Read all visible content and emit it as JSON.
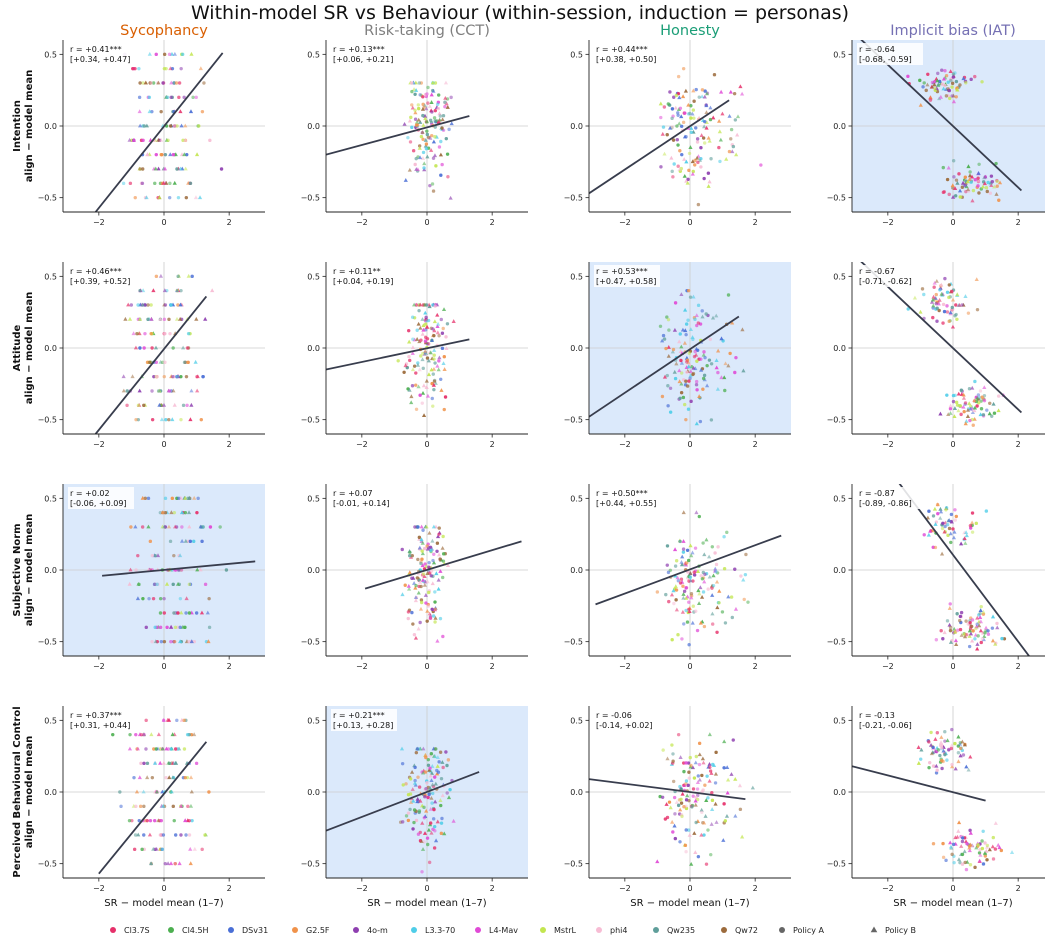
{
  "figure": {
    "title": "Within-model SR vs Behaviour (within-session, induction = personas)",
    "xlabel": "SR − model mean (1–7)",
    "ylabel_suffix": "align − model mean"
  },
  "columns": [
    {
      "name": "Sycophancy",
      "color": "#d95f02"
    },
    {
      "name": "Risk-taking (CCT)",
      "color": "#7f7f7f"
    },
    {
      "name": "Honesty",
      "color": "#1b9e77"
    },
    {
      "name": "Implicit bias (IAT)",
      "color": "#7570b3"
    }
  ],
  "rows": [
    "Intention",
    "Attitude",
    "Subjective Norm",
    "Perceived Behavioural Control"
  ],
  "legend": [
    {
      "label": "Cl3.7S",
      "color": "#e6306a",
      "marker": "circle"
    },
    {
      "label": "Cl4.5H",
      "color": "#4caf50",
      "marker": "circle"
    },
    {
      "label": "DSv31",
      "color": "#4a6fd6",
      "marker": "circle"
    },
    {
      "label": "G2.5F",
      "color": "#f0924a",
      "marker": "circle"
    },
    {
      "label": "4o-m",
      "color": "#8e3fb0",
      "marker": "circle"
    },
    {
      "label": "L3.3-70",
      "color": "#4fcde8",
      "marker": "circle"
    },
    {
      "label": "L4-Mav",
      "color": "#e04ad6",
      "marker": "circle"
    },
    {
      "label": "MstrL",
      "color": "#c3e650",
      "marker": "circle"
    },
    {
      "label": "phi4",
      "color": "#f7bcd4",
      "marker": "circle"
    },
    {
      "label": "Qw235",
      "color": "#5f9e9a",
      "marker": "circle"
    },
    {
      "label": "Qw72",
      "color": "#9c6b3c",
      "marker": "circle"
    },
    {
      "label": "Policy A",
      "color": "#666666",
      "marker": "circle"
    },
    {
      "label": "Policy B",
      "color": "#666666",
      "marker": "triangle"
    }
  ],
  "chart_data": [
    {
      "type": "scatter",
      "row": "Intention",
      "column": "Sycophancy",
      "r_text": "r = +0.41***",
      "ci_text": "[+0.34, +0.47]",
      "highlight": false,
      "xlim": [
        -3.1,
        3.1
      ],
      "ylim": [
        -0.6,
        0.6
      ],
      "xticks": [
        -2,
        0,
        2
      ],
      "yticks": [
        -0.5,
        0.0,
        0.5
      ],
      "fit": [
        [
          -2.1,
          -0.6
        ],
        [
          1.8,
          0.51
        ]
      ]
    },
    {
      "type": "scatter",
      "row": "Intention",
      "column": "Risk-taking (CCT)",
      "r_text": "r = +0.13***",
      "ci_text": "[+0.06, +0.21]",
      "highlight": false,
      "xlim": [
        -3.1,
        3.1
      ],
      "ylim": [
        -0.6,
        0.6
      ],
      "xticks": [
        -2,
        0,
        2
      ],
      "yticks": [
        -0.5,
        0.0,
        0.5
      ],
      "fit": [
        [
          -3.1,
          -0.2
        ],
        [
          1.3,
          0.07
        ]
      ]
    },
    {
      "type": "scatter",
      "row": "Intention",
      "column": "Honesty",
      "r_text": "r = +0.44***",
      "ci_text": "[+0.38, +0.50]",
      "highlight": false,
      "xlim": [
        -3.1,
        3.1
      ],
      "ylim": [
        -0.6,
        0.6
      ],
      "xticks": [
        -2,
        0,
        2
      ],
      "yticks": [
        -0.5,
        0.0,
        0.5
      ],
      "fit": [
        [
          -3.1,
          -0.47
        ],
        [
          1.2,
          0.18
        ]
      ]
    },
    {
      "type": "scatter",
      "row": "Intention",
      "column": "Implicit bias (IAT)",
      "r_text": "r = -0.64",
      "ci_text": "[-0.68, -0.59]",
      "highlight": true,
      "xlim": [
        -3.1,
        3.1
      ],
      "ylim": [
        -0.6,
        0.6
      ],
      "xticks": [
        -2,
        0,
        2
      ],
      "yticks": [
        -0.5,
        0.0,
        0.5
      ],
      "fit": [
        [
          -2.9,
          0.62
        ],
        [
          2.1,
          -0.45
        ]
      ]
    },
    {
      "type": "scatter",
      "row": "Attitude",
      "column": "Sycophancy",
      "r_text": "r = +0.46***",
      "ci_text": "[+0.39, +0.52]",
      "highlight": false,
      "xlim": [
        -3.1,
        3.1
      ],
      "ylim": [
        -0.6,
        0.6
      ],
      "xticks": [
        -2,
        0,
        2
      ],
      "yticks": [
        -0.5,
        0.0,
        0.5
      ],
      "fit": [
        [
          -2.1,
          -0.6
        ],
        [
          1.3,
          0.36
        ]
      ]
    },
    {
      "type": "scatter",
      "row": "Attitude",
      "column": "Risk-taking (CCT)",
      "r_text": "r = +0.11**",
      "ci_text": "[+0.04, +0.19]",
      "highlight": false,
      "xlim": [
        -3.1,
        3.1
      ],
      "ylim": [
        -0.6,
        0.6
      ],
      "xticks": [
        -2,
        0,
        2
      ],
      "yticks": [
        -0.5,
        0.0,
        0.5
      ],
      "fit": [
        [
          -3.1,
          -0.15
        ],
        [
          1.3,
          0.06
        ]
      ]
    },
    {
      "type": "scatter",
      "row": "Attitude",
      "column": "Honesty",
      "r_text": "r = +0.53***",
      "ci_text": "[+0.47, +0.58]",
      "highlight": true,
      "xlim": [
        -3.1,
        3.1
      ],
      "ylim": [
        -0.6,
        0.6
      ],
      "xticks": [
        -2,
        0,
        2
      ],
      "yticks": [
        -0.5,
        0.0,
        0.5
      ],
      "fit": [
        [
          -3.1,
          -0.48
        ],
        [
          1.5,
          0.22
        ]
      ]
    },
    {
      "type": "scatter",
      "row": "Attitude",
      "column": "Implicit bias (IAT)",
      "r_text": "r = -0.67",
      "ci_text": "[-0.71, -0.62]",
      "highlight": false,
      "xlim": [
        -3.1,
        3.1
      ],
      "ylim": [
        -0.6,
        0.6
      ],
      "xticks": [
        -2,
        0,
        2
      ],
      "yticks": [
        -0.5,
        0.0,
        0.5
      ],
      "fit": [
        [
          -2.9,
          0.62
        ],
        [
          2.1,
          -0.45
        ]
      ]
    },
    {
      "type": "scatter",
      "row": "Subjective Norm",
      "column": "Sycophancy",
      "r_text": "r = +0.02",
      "ci_text": "[-0.06, +0.09]",
      "highlight": true,
      "xlim": [
        -3.1,
        3.1
      ],
      "ylim": [
        -0.6,
        0.6
      ],
      "xticks": [
        -2,
        0,
        2
      ],
      "yticks": [
        -0.5,
        0.0,
        0.5
      ],
      "fit": [
        [
          -1.9,
          -0.04
        ],
        [
          2.8,
          0.06
        ]
      ]
    },
    {
      "type": "scatter",
      "row": "Subjective Norm",
      "column": "Risk-taking (CCT)",
      "r_text": "r = +0.07",
      "ci_text": "[-0.01, +0.14]",
      "highlight": false,
      "xlim": [
        -3.1,
        3.1
      ],
      "ylim": [
        -0.6,
        0.6
      ],
      "xticks": [
        -2,
        0,
        2
      ],
      "yticks": [
        -0.5,
        0.0,
        0.5
      ],
      "fit": [
        [
          -1.9,
          -0.13
        ],
        [
          2.9,
          0.2
        ]
      ]
    },
    {
      "type": "scatter",
      "row": "Subjective Norm",
      "column": "Honesty",
      "r_text": "r = +0.50***",
      "ci_text": "[+0.44, +0.55]",
      "highlight": false,
      "xlim": [
        -3.1,
        3.1
      ],
      "ylim": [
        -0.6,
        0.6
      ],
      "xticks": [
        -2,
        0,
        2
      ],
      "yticks": [
        -0.5,
        0.0,
        0.5
      ],
      "fit": [
        [
          -2.9,
          -0.24
        ],
        [
          2.8,
          0.24
        ]
      ]
    },
    {
      "type": "scatter",
      "row": "Subjective Norm",
      "column": "Implicit bias (IAT)",
      "r_text": "r = -0.87",
      "ci_text": "[-0.89, -0.86]",
      "highlight": false,
      "xlim": [
        -3.1,
        3.1
      ],
      "ylim": [
        -0.6,
        0.6
      ],
      "xticks": [
        -2,
        0,
        2
      ],
      "yticks": [
        -0.5,
        0.0,
        0.5
      ],
      "fit": [
        [
          -1.7,
          0.62
        ],
        [
          2.4,
          -0.62
        ]
      ]
    },
    {
      "type": "scatter",
      "row": "Perceived Behavioural Control",
      "column": "Sycophancy",
      "r_text": "r = +0.37***",
      "ci_text": "[+0.31, +0.44]",
      "highlight": false,
      "xlim": [
        -3.1,
        3.1
      ],
      "ylim": [
        -0.6,
        0.6
      ],
      "xticks": [
        -2,
        0,
        2
      ],
      "yticks": [
        -0.5,
        0.0,
        0.5
      ],
      "fit": [
        [
          -2.0,
          -0.57
        ],
        [
          1.3,
          0.35
        ]
      ]
    },
    {
      "type": "scatter",
      "row": "Perceived Behavioural Control",
      "column": "Risk-taking (CCT)",
      "r_text": "r = +0.21***",
      "ci_text": "[+0.13, +0.28]",
      "highlight": true,
      "xlim": [
        -3.1,
        3.1
      ],
      "ylim": [
        -0.6,
        0.6
      ],
      "xticks": [
        -2,
        0,
        2
      ],
      "yticks": [
        -0.5,
        0.0,
        0.5
      ],
      "fit": [
        [
          -3.1,
          -0.27
        ],
        [
          1.6,
          0.14
        ]
      ]
    },
    {
      "type": "scatter",
      "row": "Perceived Behavioural Control",
      "column": "Honesty",
      "r_text": "r = -0.06",
      "ci_text": "[-0.14, +0.02]",
      "highlight": false,
      "xlim": [
        -3.1,
        3.1
      ],
      "ylim": [
        -0.6,
        0.6
      ],
      "xticks": [
        -2,
        0,
        2
      ],
      "yticks": [
        -0.5,
        0.0,
        0.5
      ],
      "fit": [
        [
          -3.1,
          0.09
        ],
        [
          1.7,
          -0.05
        ]
      ]
    },
    {
      "type": "scatter",
      "row": "Perceived Behavioural Control",
      "column": "Implicit bias (IAT)",
      "r_text": "r = -0.13",
      "ci_text": "[-0.21, -0.06]",
      "highlight": false,
      "xlim": [
        -3.1,
        3.1
      ],
      "ylim": [
        -0.6,
        0.6
      ],
      "xticks": [
        -2,
        0,
        2
      ],
      "yticks": [
        -0.5,
        0.0,
        0.5
      ],
      "fit": [
        [
          -3.1,
          0.18
        ],
        [
          1.0,
          -0.06
        ]
      ]
    }
  ]
}
